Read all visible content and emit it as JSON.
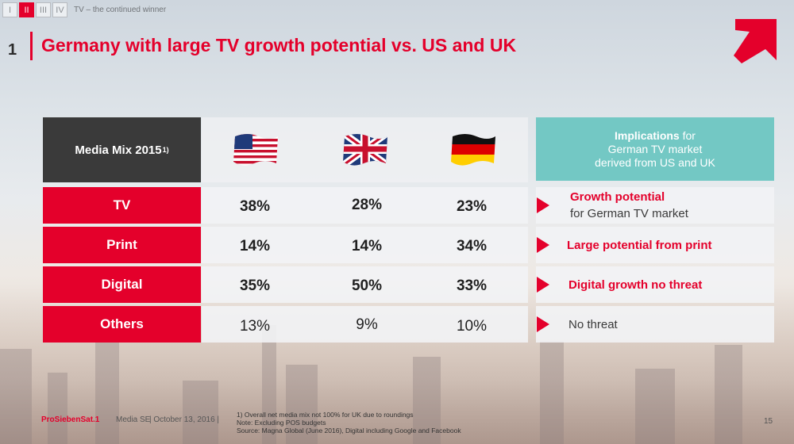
{
  "nav": {
    "tabs": [
      "I",
      "II",
      "III",
      "IV"
    ],
    "active_index": 1,
    "section_title": "TV – the continued winner"
  },
  "slide": {
    "section_number": "1",
    "title": "Germany with large TV growth potential vs. US and UK"
  },
  "table": {
    "header_label": "Media Mix 2015",
    "header_sup": "1)",
    "columns": [
      "us-flag",
      "uk-flag",
      "germany-flag"
    ],
    "implications_header": {
      "bold": "Implications",
      "line1_rest": " for",
      "line2": "German TV market",
      "line3": "derived from US and UK"
    },
    "rows": [
      {
        "label": "TV",
        "us": "38%",
        "uk": "28%",
        "de": "23%",
        "impl_red": "Growth potential",
        "impl_gray": "for German TV market"
      },
      {
        "label": "Print",
        "us": "14%",
        "uk": "14%",
        "de": "34%",
        "impl_red": "Large potential from print",
        "impl_gray": ""
      },
      {
        "label": "Digital",
        "us": "35%",
        "uk": "50%",
        "de": "33%",
        "impl_red": "Digital growth no threat",
        "impl_gray": ""
      },
      {
        "label": "Others",
        "us": "13%",
        "uk": "9%",
        "de": "10%",
        "impl_red": "",
        "impl_gray": "No threat"
      }
    ]
  },
  "footer": {
    "brand": "ProSiebenSat.1",
    "brand_suffix": "Media SE",
    "date": "| October 13, 2016 |",
    "notes": [
      "1) Overall net media mix not 100% for UK due to roundings",
      "Note: Excluding POS budgets",
      "Source: Magna Global (June 2016), Digital including Google and Facebook"
    ],
    "page_number": "15"
  },
  "colors": {
    "accent": "#e4002b",
    "teal": "#73c8c4",
    "dark": "#3a3a3a"
  }
}
